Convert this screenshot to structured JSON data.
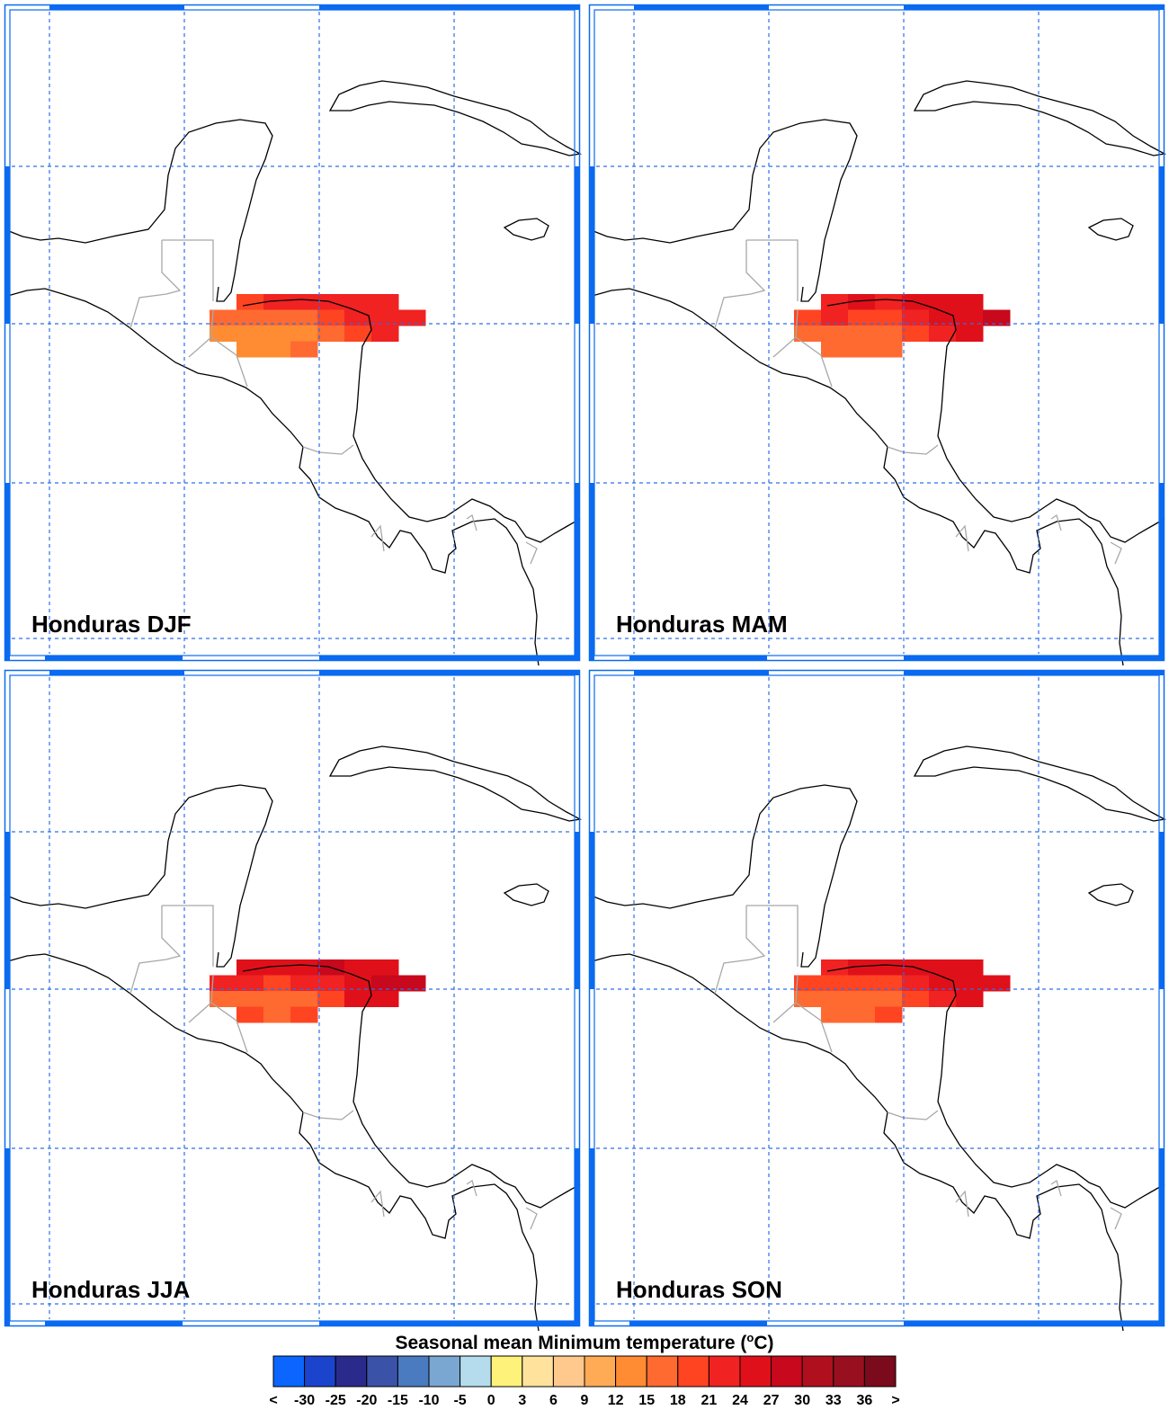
{
  "colors": {
    "frame": "#0a6af0",
    "grid": "#2f6fe8",
    "coast": "#000000",
    "border": "#a8a8a8"
  },
  "panels": [
    {
      "title": "Honduras DJF"
    },
    {
      "title": "Honduras MAM"
    },
    {
      "title": "Honduras JJA"
    },
    {
      "title": "Honduras SON"
    }
  ],
  "grid_values_degC": {
    "cols": 8,
    "rows": 4,
    "note": "",
    "DJF": [
      [
        null,
        20,
        21,
        20,
        22,
        21,
        22,
        null
      ],
      [
        16,
        17,
        15,
        16,
        18,
        22,
        23,
        23
      ],
      [
        13,
        13,
        12,
        13,
        16,
        19,
        22,
        null
      ],
      [
        null,
        13,
        13,
        14,
        null,
        null,
        null,
        null
      ]
    ]
  },
  "legend": {
    "title_text": "Seasonal mean Minimum temperature (",
    "title_sup": "o",
    "title_unit": "C)",
    "colors": [
      "#0a66ff",
      "#1a44cc",
      "#2a2a8c",
      "#3a52a8",
      "#4a7ac0",
      "#7aa6d2",
      "#b4dcec",
      "#fff27a",
      "#ffe29c",
      "#ffc88c",
      "#ffaa55",
      "#ff8c33",
      "#ff6a30",
      "#ff4422",
      "#f02222",
      "#e0101a",
      "#c8081c",
      "#b0101e",
      "#981020",
      "#7a0a1c"
    ],
    "labels": [
      "<",
      "-30",
      "-25",
      "-20",
      "-15",
      "-10",
      "-5",
      "0",
      "3",
      "6",
      "9",
      "12",
      "15",
      "18",
      "21",
      "24",
      "27",
      "30",
      "33",
      "36",
      ">"
    ]
  }
}
